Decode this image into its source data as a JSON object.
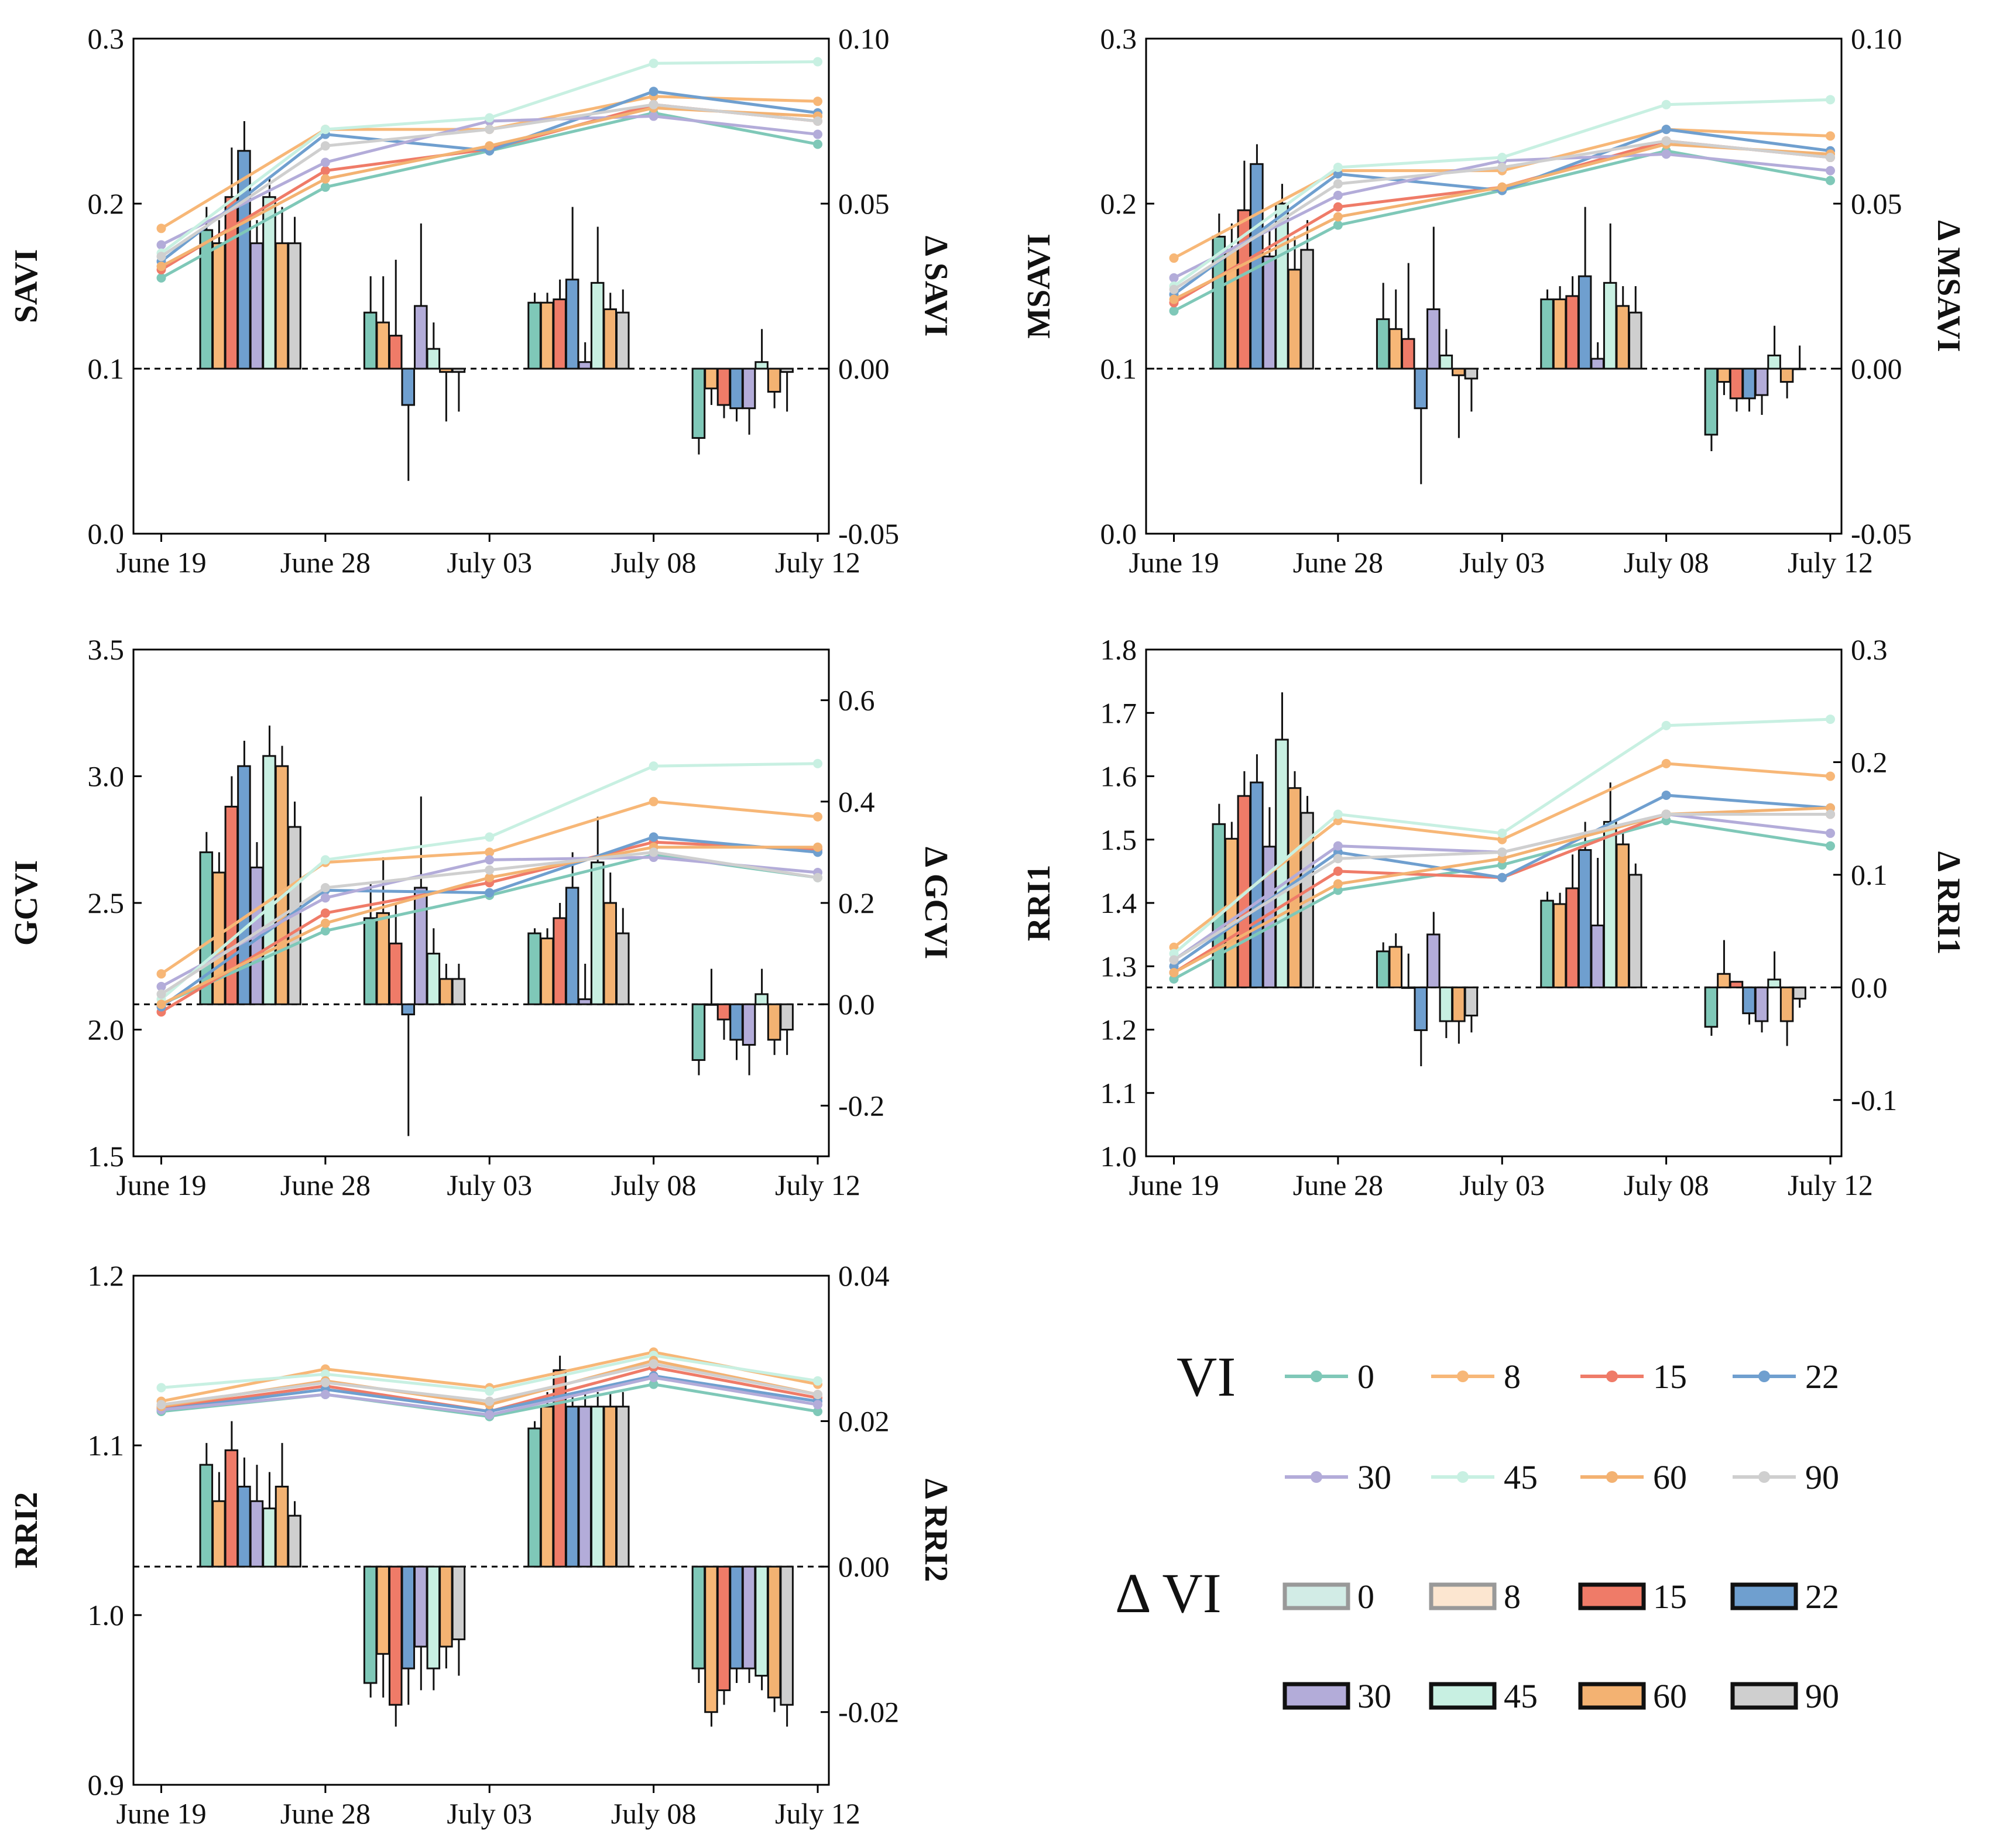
{
  "colors": {
    "0": "#7fc8b8",
    "8": "#f7b777",
    "15": "#ef7b68",
    "22": "#6f9fcf",
    "30": "#b3acd9",
    "45": "#c8f0e2",
    "60": "#f3b272",
    "90": "#cfcfcf"
  },
  "legend": {
    "vi_title": "VI",
    "dvi_title": "Δ VI",
    "vi_items": [
      "0",
      "8",
      "15",
      "22",
      "30",
      "45",
      "60",
      "90"
    ],
    "dvi_items": [
      "0",
      "8",
      "15",
      "22",
      "30",
      "45",
      "60",
      "90"
    ]
  },
  "chart_data": [
    {
      "id": "savi",
      "type": "line+bar",
      "ylabel": "SAVI",
      "y2label": "Δ SAVI",
      "categories": [
        "June 19",
        "June 28",
        "July 03",
        "July 08",
        "July 12"
      ],
      "ylim": [
        0.0,
        0.3
      ],
      "yticks": [
        "0.0",
        "0.1",
        "0.2",
        "0.3"
      ],
      "y2lim": [
        -0.05,
        0.1
      ],
      "y2ticks": [
        "-0.05",
        "0.00",
        "0.05",
        "0.10"
      ],
      "series": [
        {
          "name": "0",
          "values": [
            0.155,
            0.21,
            0.232,
            0.255,
            0.236
          ]
        },
        {
          "name": "8",
          "values": [
            0.185,
            0.245,
            0.245,
            0.265,
            0.262
          ]
        },
        {
          "name": "15",
          "values": [
            0.16,
            0.22,
            0.233,
            0.26,
            0.25
          ]
        },
        {
          "name": "22",
          "values": [
            0.165,
            0.242,
            0.232,
            0.268,
            0.255
          ]
        },
        {
          "name": "30",
          "values": [
            0.175,
            0.225,
            0.25,
            0.253,
            0.242
          ]
        },
        {
          "name": "45",
          "values": [
            0.17,
            0.245,
            0.252,
            0.285,
            0.286
          ]
        },
        {
          "name": "60",
          "values": [
            0.162,
            0.215,
            0.235,
            0.258,
            0.253
          ]
        },
        {
          "name": "90",
          "values": [
            0.168,
            0.235,
            0.245,
            0.26,
            0.25
          ]
        }
      ],
      "delta_groups": [
        {
          "values": [
            0.042,
            0.038,
            0.052,
            0.066,
            0.038,
            0.052,
            0.038,
            0.038
          ],
          "errors": [
            0.007,
            0.007,
            0.015,
            0.009,
            0.007,
            0.006,
            0.011,
            0.008
          ]
        },
        {
          "values": [
            0.017,
            0.014,
            0.01,
            -0.011,
            0.019,
            0.006,
            -0.001,
            -0.001
          ],
          "errors": [
            0.011,
            0.014,
            0.023,
            0.023,
            0.025,
            0.008,
            0.015,
            0.012
          ]
        },
        {
          "values": [
            0.02,
            0.02,
            0.021,
            0.027,
            0.002,
            0.026,
            0.018,
            0.017
          ],
          "errors": [
            0.003,
            0.003,
            0.006,
            0.022,
            0.006,
            0.017,
            0.005,
            0.007
          ]
        },
        {
          "values": [
            -0.021,
            -0.006,
            -0.011,
            -0.012,
            -0.012,
            0.002,
            -0.007,
            -0.001
          ],
          "errors": [
            0.005,
            0.005,
            0.004,
            0.004,
            0.008,
            0.01,
            0.005,
            0.012
          ]
        }
      ]
    },
    {
      "id": "msavi",
      "type": "line+bar",
      "ylabel": "MSAVI",
      "y2label": "Δ MSAVI",
      "categories": [
        "June 19",
        "June 28",
        "July 03",
        "July 08",
        "July 12"
      ],
      "ylim": [
        0.0,
        0.3
      ],
      "yticks": [
        "0.0",
        "0.1",
        "0.2",
        "0.3"
      ],
      "y2lim": [
        -0.05,
        0.1
      ],
      "y2ticks": [
        "-0.05",
        "0.00",
        "0.05",
        "0.10"
      ],
      "series": [
        {
          "name": "0",
          "values": [
            0.135,
            0.187,
            0.208,
            0.232,
            0.214
          ]
        },
        {
          "name": "8",
          "values": [
            0.167,
            0.22,
            0.22,
            0.245,
            0.241
          ]
        },
        {
          "name": "15",
          "values": [
            0.14,
            0.198,
            0.21,
            0.238,
            0.228
          ]
        },
        {
          "name": "22",
          "values": [
            0.145,
            0.218,
            0.208,
            0.245,
            0.232
          ]
        },
        {
          "name": "30",
          "values": [
            0.155,
            0.205,
            0.226,
            0.23,
            0.22
          ]
        },
        {
          "name": "45",
          "values": [
            0.15,
            0.222,
            0.228,
            0.26,
            0.263
          ]
        },
        {
          "name": "60",
          "values": [
            0.142,
            0.192,
            0.21,
            0.236,
            0.23
          ]
        },
        {
          "name": "90",
          "values": [
            0.148,
            0.212,
            0.222,
            0.238,
            0.228
          ]
        }
      ],
      "delta_groups": [
        {
          "values": [
            0.04,
            0.036,
            0.048,
            0.062,
            0.034,
            0.05,
            0.03,
            0.036
          ],
          "errors": [
            0.007,
            0.008,
            0.015,
            0.006,
            0.008,
            0.006,
            0.01,
            0.009
          ]
        },
        {
          "values": [
            0.015,
            0.012,
            0.009,
            -0.012,
            0.018,
            0.004,
            -0.002,
            -0.003
          ],
          "errors": [
            0.011,
            0.012,
            0.023,
            0.023,
            0.025,
            0.008,
            0.019,
            0.01
          ]
        },
        {
          "values": [
            0.021,
            0.021,
            0.022,
            0.028,
            0.003,
            0.026,
            0.019,
            0.017
          ],
          "errors": [
            0.003,
            0.004,
            0.006,
            0.021,
            0.005,
            0.018,
            0.006,
            0.008
          ]
        },
        {
          "values": [
            -0.02,
            -0.004,
            -0.009,
            -0.009,
            -0.008,
            0.004,
            -0.004,
            0.0
          ],
          "errors": [
            0.005,
            0.004,
            0.004,
            0.004,
            0.006,
            0.009,
            0.005,
            0.007
          ]
        }
      ]
    },
    {
      "id": "gcvi",
      "type": "line+bar",
      "ylabel": "GCVI",
      "y2label": "Δ GCVI",
      "categories": [
        "June 19",
        "June 28",
        "July 03",
        "July 08",
        "July 12"
      ],
      "ylim": [
        1.5,
        3.5
      ],
      "yticks": [
        "1.5",
        "2.0",
        "2.5",
        "3.0",
        "3.5"
      ],
      "y2lim": [
        -0.3,
        0.7
      ],
      "y2ticks": [
        "-0.2",
        "0.0",
        "0.2",
        "0.4",
        "0.6"
      ],
      "series": [
        {
          "name": "0",
          "values": [
            2.1,
            2.39,
            2.53,
            2.69,
            2.6
          ]
        },
        {
          "name": "8",
          "values": [
            2.22,
            2.66,
            2.7,
            2.9,
            2.84
          ]
        },
        {
          "name": "15",
          "values": [
            2.07,
            2.46,
            2.58,
            2.74,
            2.71
          ]
        },
        {
          "name": "22",
          "values": [
            2.09,
            2.55,
            2.54,
            2.76,
            2.7
          ]
        },
        {
          "name": "30",
          "values": [
            2.17,
            2.52,
            2.67,
            2.68,
            2.62
          ]
        },
        {
          "name": "45",
          "values": [
            2.12,
            2.67,
            2.76,
            3.04,
            3.05
          ]
        },
        {
          "name": "60",
          "values": [
            2.1,
            2.42,
            2.6,
            2.72,
            2.72
          ]
        },
        {
          "name": "90",
          "values": [
            2.14,
            2.56,
            2.63,
            2.7,
            2.6
          ]
        }
      ],
      "delta_groups": [
        {
          "values": [
            0.3,
            0.26,
            0.39,
            0.47,
            0.27,
            0.49,
            0.47,
            0.35
          ],
          "errors": [
            0.04,
            0.04,
            0.06,
            0.05,
            0.05,
            0.06,
            0.04,
            0.05
          ]
        },
        {
          "values": [
            0.17,
            0.18,
            0.12,
            -0.02,
            0.23,
            0.1,
            0.05,
            0.05
          ],
          "errors": [
            0.07,
            0.11,
            0.08,
            0.24,
            0.18,
            0.05,
            0.03,
            0.03
          ]
        },
        {
          "values": [
            0.14,
            0.13,
            0.17,
            0.23,
            0.01,
            0.28,
            0.2,
            0.14
          ],
          "errors": [
            0.01,
            0.02,
            0.03,
            0.07,
            0.07,
            0.09,
            0.06,
            0.05
          ]
        },
        {
          "values": [
            -0.11,
            0.0,
            -0.03,
            -0.07,
            -0.08,
            0.02,
            -0.07,
            -0.05
          ],
          "errors": [
            0.03,
            0.07,
            0.04,
            0.04,
            0.06,
            0.05,
            0.03,
            0.05
          ]
        }
      ]
    },
    {
      "id": "rri1",
      "type": "line+bar",
      "ylabel": "RRI1",
      "y2label": "Δ RRI1",
      "categories": [
        "June 19",
        "June 28",
        "July 03",
        "July 08",
        "July 12"
      ],
      "ylim": [
        1.0,
        1.8
      ],
      "yticks": [
        "1.0",
        "1.1",
        "1.2",
        "1.3",
        "1.4",
        "1.5",
        "1.6",
        "1.7",
        "1.8"
      ],
      "y2lim": [
        -0.15,
        0.3
      ],
      "y2ticks": [
        "-0.1",
        "0.0",
        "0.1",
        "0.2",
        "0.3"
      ],
      "series": [
        {
          "name": "0",
          "values": [
            1.28,
            1.42,
            1.46,
            1.53,
            1.49
          ]
        },
        {
          "name": "8",
          "values": [
            1.33,
            1.53,
            1.5,
            1.62,
            1.6
          ]
        },
        {
          "name": "15",
          "values": [
            1.29,
            1.45,
            1.44,
            1.54,
            1.54
          ]
        },
        {
          "name": "22",
          "values": [
            1.3,
            1.48,
            1.44,
            1.57,
            1.55
          ]
        },
        {
          "name": "30",
          "values": [
            1.31,
            1.49,
            1.48,
            1.54,
            1.51
          ]
        },
        {
          "name": "45",
          "values": [
            1.32,
            1.54,
            1.51,
            1.68,
            1.69
          ]
        },
        {
          "name": "60",
          "values": [
            1.29,
            1.43,
            1.47,
            1.54,
            1.55
          ]
        },
        {
          "name": "90",
          "values": [
            1.31,
            1.47,
            1.48,
            1.54,
            1.54
          ]
        }
      ],
      "delta_groups": [
        {
          "values": [
            0.145,
            0.132,
            0.17,
            0.182,
            0.125,
            0.22,
            0.177,
            0.155
          ],
          "errors": [
            0.018,
            0.015,
            0.022,
            0.025,
            0.035,
            0.042,
            0.015,
            0.015
          ]
        },
        {
          "values": [
            0.032,
            0.036,
            0.0,
            -0.038,
            0.047,
            -0.03,
            -0.03,
            -0.025
          ],
          "errors": [
            0.008,
            0.012,
            0.03,
            0.032,
            0.02,
            0.015,
            0.02,
            0.015
          ]
        },
        {
          "values": [
            0.077,
            0.074,
            0.088,
            0.122,
            0.055,
            0.147,
            0.127,
            0.1
          ],
          "errors": [
            0.008,
            0.01,
            0.03,
            0.025,
            0.06,
            0.035,
            0.01,
            0.01
          ]
        },
        {
          "values": [
            -0.035,
            0.012,
            0.005,
            -0.023,
            -0.03,
            0.007,
            -0.03,
            -0.01
          ],
          "errors": [
            0.008,
            0.03,
            0.0,
            0.01,
            0.01,
            0.025,
            0.022,
            0.008
          ]
        }
      ]
    },
    {
      "id": "rri2",
      "type": "line+bar",
      "ylabel": "RRI2",
      "y2label": "Δ RRI2",
      "categories": [
        "June 19",
        "June 28",
        "July 03",
        "July 08",
        "July 12"
      ],
      "ylim": [
        0.9,
        1.2
      ],
      "yticks": [
        "0.9",
        "1.0",
        "1.1",
        "1.2"
      ],
      "y2lim": [
        -0.03,
        0.04
      ],
      "y2ticks": [
        "-0.02",
        "0.00",
        "0.02",
        "0.04"
      ],
      "series": [
        {
          "name": "0",
          "values": [
            1.12,
            1.13,
            1.117,
            1.136,
            1.12
          ]
        },
        {
          "name": "8",
          "values": [
            1.126,
            1.145,
            1.134,
            1.155,
            1.136
          ]
        },
        {
          "name": "15",
          "values": [
            1.122,
            1.135,
            1.12,
            1.146,
            1.128
          ]
        },
        {
          "name": "22",
          "values": [
            1.121,
            1.133,
            1.12,
            1.141,
            1.126
          ]
        },
        {
          "name": "30",
          "values": [
            1.121,
            1.13,
            1.118,
            1.14,
            1.124
          ]
        },
        {
          "name": "45",
          "values": [
            1.134,
            1.142,
            1.132,
            1.153,
            1.138
          ]
        },
        {
          "name": "60",
          "values": [
            1.123,
            1.138,
            1.124,
            1.15,
            1.13
          ]
        },
        {
          "name": "90",
          "values": [
            1.124,
            1.137,
            1.126,
            1.148,
            1.13
          ]
        }
      ],
      "delta_groups": [
        {
          "values": [
            0.014,
            0.009,
            0.016,
            0.011,
            0.009,
            0.008,
            0.011,
            0.007
          ],
          "errors": [
            0.003,
            0.004,
            0.004,
            0.004,
            0.005,
            0.005,
            0.006,
            0.002
          ]
        },
        {
          "values": [
            -0.016,
            -0.012,
            -0.019,
            -0.014,
            -0.011,
            -0.014,
            -0.011,
            -0.01
          ],
          "errors": [
            0.002,
            0.006,
            0.003,
            0.005,
            0.006,
            0.003,
            0.003,
            0.005
          ]
        },
        {
          "values": [
            0.019,
            0.022,
            0.027,
            0.022,
            0.022,
            0.022,
            0.022,
            0.022
          ],
          "errors": [
            0.001,
            0.002,
            0.002,
            0.002,
            0.002,
            0.002,
            0.002,
            0.002
          ]
        },
        {
          "values": [
            -0.014,
            -0.02,
            -0.017,
            -0.014,
            -0.014,
            -0.015,
            -0.018,
            -0.019
          ],
          "errors": [
            0.002,
            0.002,
            0.002,
            0.002,
            0.002,
            0.002,
            0.002,
            0.003
          ]
        }
      ]
    }
  ]
}
